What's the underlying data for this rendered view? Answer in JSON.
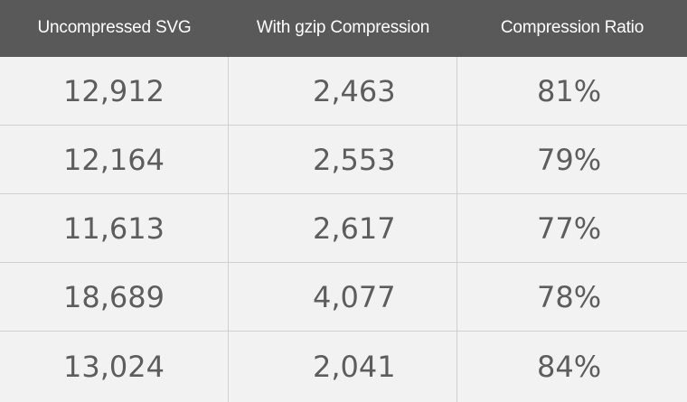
{
  "columns": {
    "uncompressed": "Uncompressed SVG",
    "gzip": "With gzip Compression",
    "ratio": "Compression Ratio"
  },
  "rows": [
    {
      "uncompressed": "12,912",
      "gzip": "2,463",
      "ratio": "81%"
    },
    {
      "uncompressed": "12,164",
      "gzip": "2,553",
      "ratio": "79%"
    },
    {
      "uncompressed": "11,613",
      "gzip": "2,617",
      "ratio": "77%"
    },
    {
      "uncompressed": "18,689",
      "gzip": "4,077",
      "ratio": "78%"
    },
    {
      "uncompressed": "13,024",
      "gzip": "2,041",
      "ratio": "84%"
    }
  ],
  "colors": {
    "header_bg": "#595959",
    "header_text": "#ffffff",
    "body_bg": "#f2f2f2",
    "cell_text": "#5d5d5d",
    "grid": "#d0d0d0"
  }
}
